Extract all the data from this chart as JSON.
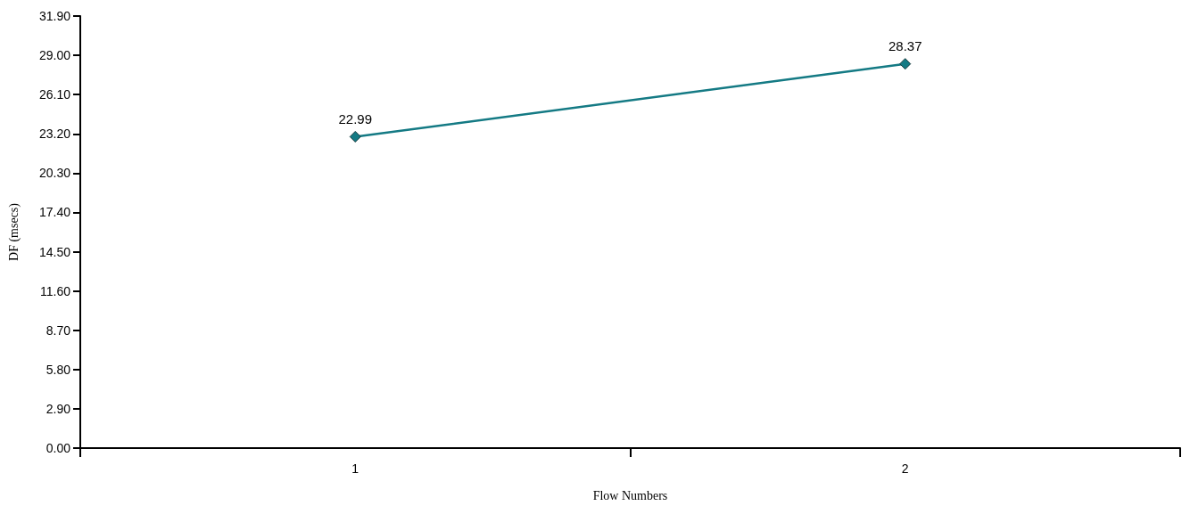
{
  "chart_data": {
    "type": "line",
    "xlabel": "Flow Numbers",
    "ylabel": "DF (msecs)",
    "categories": [
      "1",
      "2"
    ],
    "series": [
      {
        "color": "#147a84",
        "values": [
          22.99,
          28.37
        ]
      }
    ],
    "ylim": [
      0,
      31.9
    ],
    "yticks": [
      {
        "value": 0,
        "label": "0.00"
      },
      {
        "value": 2.9,
        "label": "2.90"
      },
      {
        "value": 5.8,
        "label": "5.80"
      },
      {
        "value": 8.7,
        "label": "8.70"
      },
      {
        "value": 11.6,
        "label": "11.60"
      },
      {
        "value": 14.5,
        "label": "14.50"
      },
      {
        "value": 17.4,
        "label": "17.40"
      },
      {
        "value": 20.3,
        "label": "20.30"
      },
      {
        "value": 23.2,
        "label": "23.20"
      },
      {
        "value": 26.1,
        "label": "26.10"
      },
      {
        "value": 29,
        "label": "29.00"
      },
      {
        "value": 31.9,
        "label": "31.90"
      }
    ],
    "grid": false,
    "marker": "diamond",
    "line_style": "solid",
    "data_labels": true
  }
}
